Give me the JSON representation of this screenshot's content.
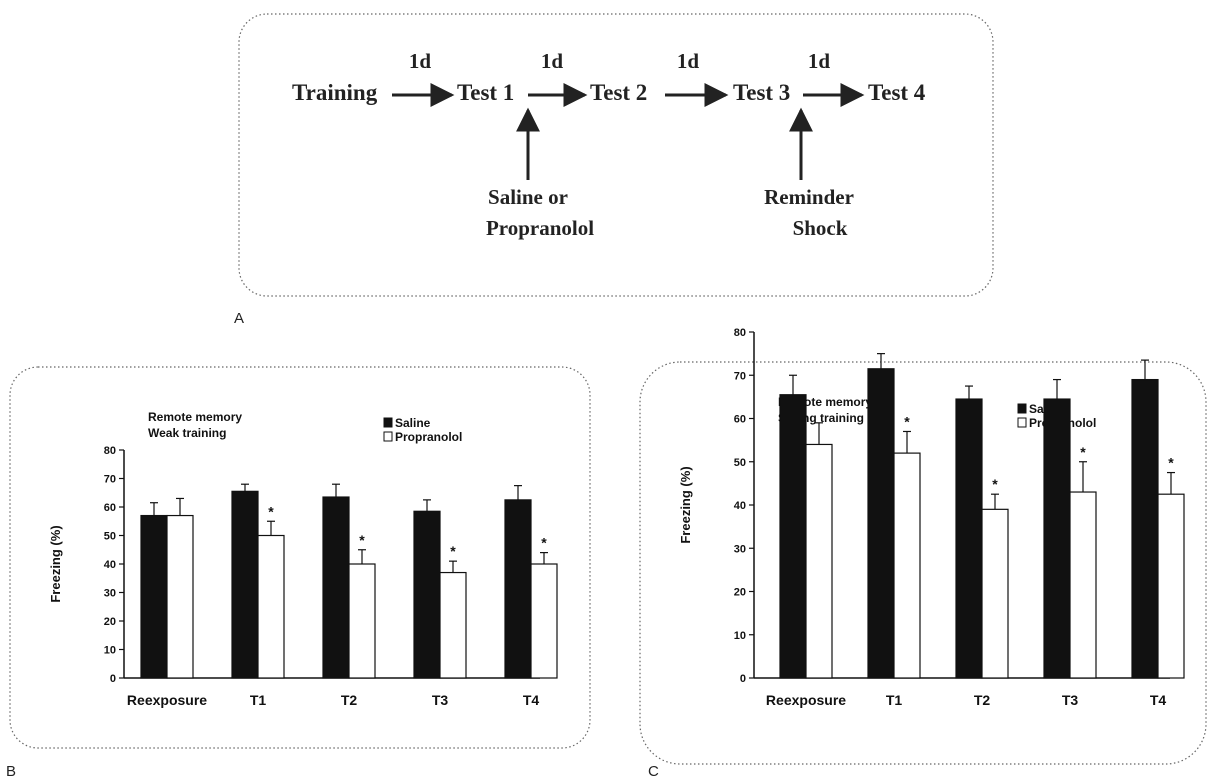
{
  "panels": {
    "a": {
      "letter": "A"
    },
    "b": {
      "letter": "B"
    },
    "c": {
      "letter": "C"
    }
  },
  "timeline": {
    "stages": [
      "Training",
      "Test 1",
      "Test 2",
      "Test 3",
      "Test 4"
    ],
    "interval_label": "1d",
    "intervention_1": {
      "line1": "Saline or",
      "line2": "Propranolol"
    },
    "intervention_2": {
      "line1": "Reminder",
      "line2": "Shock"
    }
  },
  "chart_data": [
    {
      "type": "bar",
      "annotation": [
        "Remote memory",
        "Weak training"
      ],
      "categories": [
        "Reexposure",
        "T1",
        "T2",
        "T3",
        "T4"
      ],
      "ylabel": "Freezing (%)",
      "ylim": [
        0,
        80
      ],
      "yticks": [
        0,
        10,
        20,
        30,
        40,
        50,
        60,
        70,
        80
      ],
      "legend_placement": "top-right",
      "series": [
        {
          "name": "Saline",
          "color": "#111111",
          "values": [
            57,
            65.5,
            63.5,
            58.5,
            62.5
          ],
          "errors": [
            4.5,
            2.5,
            4.5,
            4,
            5
          ]
        },
        {
          "name": "Propranolol",
          "color": "#ffffff",
          "values": [
            57,
            50,
            40,
            37,
            40
          ],
          "errors": [
            6,
            5,
            5,
            4,
            4
          ]
        }
      ],
      "significance_marker": "*",
      "significant_categories": [
        1,
        2,
        3,
        4
      ]
    },
    {
      "type": "bar",
      "annotation": [
        "Remote memory",
        "Strong training"
      ],
      "categories": [
        "Reexposure",
        "T1",
        "T2",
        "T3",
        "T4"
      ],
      "ylabel": "Freezing (%)",
      "ylim": [
        0,
        80
      ],
      "yticks": [
        0,
        10,
        20,
        30,
        40,
        50,
        60,
        70,
        80
      ],
      "legend_placement": "top-right",
      "series": [
        {
          "name": "Saline",
          "color": "#111111",
          "values": [
            65.5,
            71.5,
            64.5,
            64.5,
            69
          ],
          "errors": [
            4.5,
            3.5,
            3,
            4.5,
            4.5
          ]
        },
        {
          "name": "Propranolol",
          "color": "#ffffff",
          "values": [
            54,
            52,
            39,
            43,
            42.5
          ],
          "errors": [
            5,
            5,
            3.5,
            7,
            5
          ]
        }
      ],
      "significance_marker": "*",
      "significant_categories": [
        1,
        2,
        3,
        4
      ]
    }
  ]
}
